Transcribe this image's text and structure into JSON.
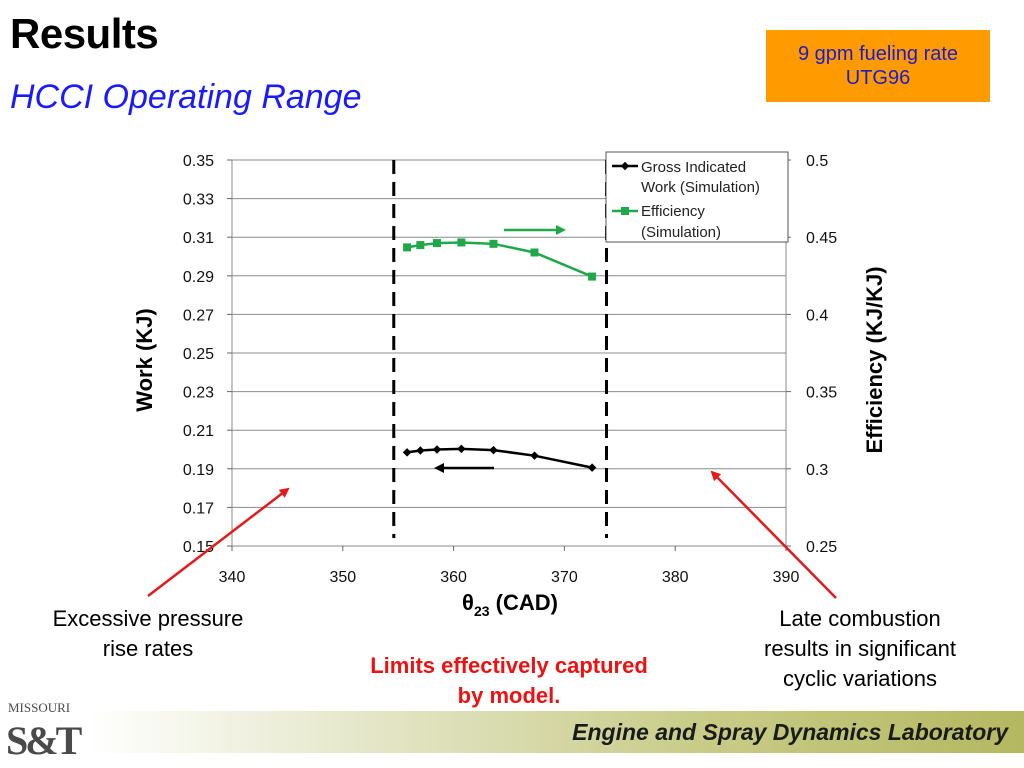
{
  "slide": {
    "title": "Results",
    "subtitle": "HCCI Operating Range",
    "badge_line1": "9 gpm fueling rate",
    "badge_line2": "UTG96",
    "note_left_line1": "Excessive pressure",
    "note_left_line2": "rise rates",
    "note_right_line1": "Late combustion",
    "note_right_line2": "results in significant",
    "note_right_line3": "cyclic variations",
    "note_center_line1": "Limits effectively captured",
    "note_center_line2": "by model.",
    "footer": "Engine and Spray Dynamics Laboratory",
    "logo_top": "MISSOURI",
    "logo_main": "S&T"
  },
  "chart_data": {
    "type": "line",
    "xlabel_main": "θ",
    "xlabel_sub": "23",
    "xlabel_rest": " (CAD)",
    "ylabel_left": "Work (KJ)",
    "ylabel_right": "Efficiency (KJ/KJ)",
    "xlim": [
      340,
      390
    ],
    "ylim_left": [
      0.15,
      0.35
    ],
    "ylim_right": [
      0.25,
      0.5
    ],
    "x_ticks": [
      "340",
      "350",
      "360",
      "370",
      "380",
      "390"
    ],
    "y_ticks_left": [
      "0.15",
      "0.17",
      "0.19",
      "0.21",
      "0.23",
      "0.25",
      "0.27",
      "0.29",
      "0.31",
      "0.33",
      "0.35"
    ],
    "y_ticks_right": [
      "0.25",
      "0.3",
      "0.35",
      "0.4",
      "0.45",
      "0.5"
    ],
    "grid": "horizontal",
    "legend_position": "top-right",
    "limit_lines_x": [
      354.6,
      373.8
    ],
    "series": [
      {
        "name": "Gross Indicated Work (Simulation)",
        "legend_line1": "Gross Indicated",
        "legend_line2": "Work (Simulation)",
        "axis": "left",
        "color": "#000000",
        "marker": "diamond",
        "x": [
          355.8,
          357.0,
          358.5,
          360.7,
          363.6,
          367.3,
          372.5
        ],
        "y": [
          0.1985,
          0.1995,
          0.2,
          0.2003,
          0.1997,
          0.1968,
          0.1906
        ]
      },
      {
        "name": "Efficiency (Simulation)",
        "legend_line1": "Efficiency",
        "legend_line2": "(Simulation)",
        "axis": "right",
        "color": "#1fa84a",
        "marker": "square",
        "x": [
          355.8,
          357.0,
          358.5,
          360.7,
          363.6,
          367.3,
          372.5
        ],
        "y": [
          0.4434,
          0.4449,
          0.4462,
          0.4466,
          0.4457,
          0.4401,
          0.4245
        ]
      }
    ]
  }
}
